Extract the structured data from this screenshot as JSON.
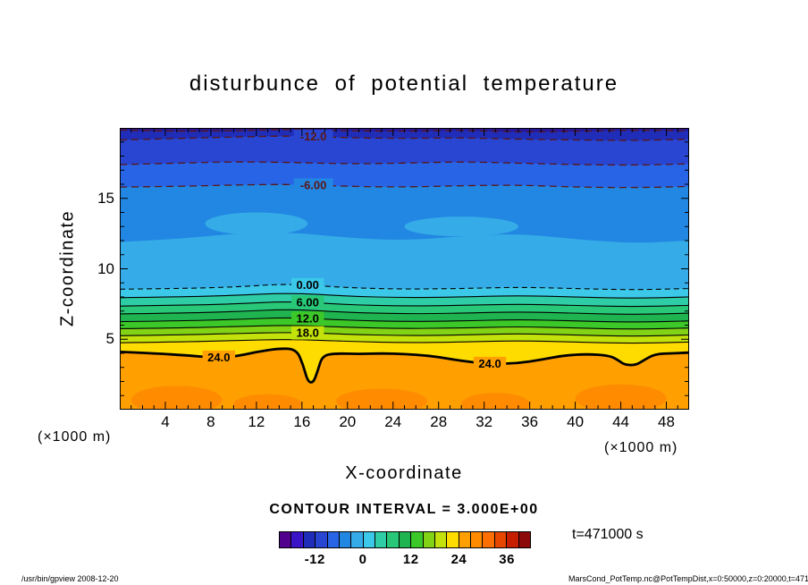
{
  "title": "disturbunce of potential temperature",
  "axes": {
    "x_label": "X-coordinate",
    "y_label": "Z-coordinate",
    "x_unit": "(×1000 m)",
    "y_unit": "(×1000 m)",
    "x_ticks": [
      4,
      8,
      12,
      16,
      20,
      24,
      28,
      32,
      36,
      40,
      44,
      48
    ],
    "y_ticks": [
      5,
      10,
      15
    ]
  },
  "contour_info": "CONTOUR INTERVAL = 3.000E+00",
  "time_label": "t=471000 s",
  "footer": {
    "left": "/usr/bin/gpview  2008-12-20",
    "right": "MarsCond_PotTemp.nc@PotTempDist,x=0:50000,z=0:20000,t=471000"
  },
  "colorbar": {
    "min": -21,
    "max": 42,
    "step": 3,
    "colors": [
      "#50008C",
      "#3C14C8",
      "#1F2DB8",
      "#2846D2",
      "#2864E6",
      "#2287E2",
      "#35ACE8",
      "#3CC8E8",
      "#2ECDA5",
      "#28C878",
      "#1FB450",
      "#3CC828",
      "#82D216",
      "#C3E10A",
      "#FFDC00",
      "#FFA000",
      "#FF8C00",
      "#FF6E00",
      "#E64600",
      "#C81E00",
      "#8C0A0A"
    ],
    "tick_labels": [
      -12,
      0,
      12,
      24,
      36
    ]
  },
  "chart_data": {
    "type": "contour",
    "title": "disturbunce of potential temperature",
    "xlabel": "X-coordinate",
    "ylabel": "Z-coordinate",
    "x_unit": "(×1000 m)",
    "y_unit": "(×1000 m)",
    "xlim": [
      0,
      50
    ],
    "ylim": [
      0,
      20
    ],
    "contour_interval": 3.0,
    "time_seconds": 471000,
    "grid": false,
    "base_color": "#281699",
    "boundaries": [
      {
        "level": -15,
        "style": "dashed-neg",
        "color_below": "#1F2DB8",
        "points": [
          [
            0,
            19.85
          ],
          [
            5,
            19.75
          ],
          [
            10,
            19.8
          ],
          [
            15,
            19.9
          ],
          [
            20,
            19.8
          ],
          [
            25,
            19.75
          ],
          [
            30,
            19.85
          ],
          [
            35,
            19.7
          ],
          [
            40,
            19.75
          ],
          [
            45,
            19.85
          ],
          [
            50,
            19.8
          ]
        ],
        "labels": []
      },
      {
        "level": -12,
        "style": "dashed-neg",
        "color_below": "#2846D2",
        "points": [
          [
            0,
            19.15
          ],
          [
            5,
            19.25
          ],
          [
            10,
            19.35
          ],
          [
            15,
            19.45
          ],
          [
            20,
            19.3
          ],
          [
            25,
            19.25
          ],
          [
            30,
            19.3
          ],
          [
            35,
            19.2
          ],
          [
            40,
            19.15
          ],
          [
            45,
            19.1
          ],
          [
            50,
            19.2
          ]
        ],
        "labels": [
          {
            "text": "-12.0",
            "x": 17
          }
        ]
      },
      {
        "level": -9,
        "style": "dashed-neg",
        "color_below": "#2864E6",
        "points": [
          [
            0,
            17.4
          ],
          [
            5,
            17.5
          ],
          [
            10,
            17.6
          ],
          [
            15,
            17.55
          ],
          [
            20,
            17.45
          ],
          [
            25,
            17.5
          ],
          [
            30,
            17.6
          ],
          [
            35,
            17.5
          ],
          [
            40,
            17.4
          ],
          [
            45,
            17.35
          ],
          [
            50,
            17.45
          ]
        ],
        "labels": []
      },
      {
        "level": -6,
        "style": "dashed-neg",
        "color_below": "#2287E2",
        "points": [
          [
            0,
            15.8
          ],
          [
            5,
            15.85
          ],
          [
            10,
            15.95
          ],
          [
            15,
            16.0
          ],
          [
            20,
            15.85
          ],
          [
            25,
            15.8
          ],
          [
            30,
            15.9
          ],
          [
            35,
            15.95
          ],
          [
            40,
            15.8
          ],
          [
            45,
            15.75
          ],
          [
            50,
            15.85
          ]
        ],
        "labels": [
          {
            "text": "-6.00",
            "x": 17
          }
        ]
      },
      {
        "level": -3,
        "style": "none",
        "color_below": "#35ACE8",
        "points": [
          [
            0,
            11.9
          ],
          [
            5,
            12.1
          ],
          [
            10,
            12.5
          ],
          [
            15,
            12.6
          ],
          [
            20,
            12.2
          ],
          [
            25,
            12.0
          ],
          [
            30,
            12.3
          ],
          [
            35,
            12.5
          ],
          [
            40,
            12.1
          ],
          [
            45,
            11.8
          ],
          [
            50,
            12.0
          ]
        ],
        "labels": []
      },
      {
        "level": 0,
        "style": "dashed",
        "color_below": "#3CC8E8",
        "points": [
          [
            0,
            8.55
          ],
          [
            5,
            8.6
          ],
          [
            10,
            8.7
          ],
          [
            15,
            8.95
          ],
          [
            20,
            8.65
          ],
          [
            25,
            8.55
          ],
          [
            30,
            8.6
          ],
          [
            35,
            8.7
          ],
          [
            40,
            8.6
          ],
          [
            45,
            8.5
          ],
          [
            50,
            8.6
          ]
        ],
        "labels": [
          {
            "text": "0.00",
            "x": 16.5
          }
        ]
      },
      {
        "level": 3,
        "style": "solid",
        "color_below": "#2ECDA5",
        "points": [
          [
            0,
            7.95
          ],
          [
            5,
            8.0
          ],
          [
            10,
            8.1
          ],
          [
            15,
            8.3
          ],
          [
            20,
            8.05
          ],
          [
            25,
            7.95
          ],
          [
            30,
            8.0
          ],
          [
            35,
            8.1
          ],
          [
            40,
            8.0
          ],
          [
            45,
            7.9
          ],
          [
            50,
            8.0
          ]
        ],
        "labels": []
      },
      {
        "level": 6,
        "style": "solid",
        "color_below": "#28C878",
        "points": [
          [
            0,
            7.35
          ],
          [
            5,
            7.4
          ],
          [
            10,
            7.5
          ],
          [
            15,
            7.7
          ],
          [
            20,
            7.45
          ],
          [
            25,
            7.35
          ],
          [
            30,
            7.4
          ],
          [
            35,
            7.5
          ],
          [
            40,
            7.4
          ],
          [
            45,
            7.3
          ],
          [
            50,
            7.4
          ]
        ],
        "labels": [
          {
            "text": "6.00",
            "x": 16.5
          }
        ]
      },
      {
        "level": 9,
        "style": "solid",
        "color_below": "#1FB450",
        "points": [
          [
            0,
            6.8
          ],
          [
            5,
            6.85
          ],
          [
            10,
            6.95
          ],
          [
            15,
            7.15
          ],
          [
            20,
            6.9
          ],
          [
            25,
            6.8
          ],
          [
            30,
            6.85
          ],
          [
            35,
            6.95
          ],
          [
            40,
            6.85
          ],
          [
            45,
            6.75
          ],
          [
            50,
            6.85
          ]
        ],
        "labels": []
      },
      {
        "level": 12,
        "style": "solid",
        "color_below": "#3CC828",
        "points": [
          [
            0,
            6.25
          ],
          [
            5,
            6.3
          ],
          [
            10,
            6.4
          ],
          [
            15,
            6.55
          ],
          [
            20,
            6.35
          ],
          [
            25,
            6.25
          ],
          [
            30,
            6.3
          ],
          [
            35,
            6.4
          ],
          [
            40,
            6.3
          ],
          [
            45,
            6.2
          ],
          [
            50,
            6.3
          ]
        ],
        "labels": [
          {
            "text": "12.0",
            "x": 16.5
          }
        ]
      },
      {
        "level": 15,
        "style": "solid",
        "color_below": "#82D216",
        "points": [
          [
            0,
            5.75
          ],
          [
            5,
            5.8
          ],
          [
            10,
            5.9
          ],
          [
            15,
            6.0
          ],
          [
            20,
            5.85
          ],
          [
            25,
            5.75
          ],
          [
            30,
            5.8
          ],
          [
            35,
            5.9
          ],
          [
            40,
            5.8
          ],
          [
            45,
            5.7
          ],
          [
            50,
            5.8
          ]
        ],
        "labels": []
      },
      {
        "level": 18,
        "style": "solid",
        "color_below": "#C3E10A",
        "points": [
          [
            0,
            5.25
          ],
          [
            5,
            5.3
          ],
          [
            10,
            5.4
          ],
          [
            15,
            5.5
          ],
          [
            20,
            5.35
          ],
          [
            25,
            5.25
          ],
          [
            30,
            5.3
          ],
          [
            35,
            5.4
          ],
          [
            40,
            5.3
          ],
          [
            45,
            5.2
          ],
          [
            50,
            5.3
          ]
        ],
        "labels": [
          {
            "text": "18.0",
            "x": 16.5
          }
        ]
      },
      {
        "level": 21,
        "style": "solid",
        "color_below": "#FFDC00",
        "points": [
          [
            0,
            4.75
          ],
          [
            5,
            4.8
          ],
          [
            10,
            4.9
          ],
          [
            15,
            5.0
          ],
          [
            20,
            4.85
          ],
          [
            25,
            4.75
          ],
          [
            30,
            4.8
          ],
          [
            35,
            4.9
          ],
          [
            40,
            4.8
          ],
          [
            45,
            4.7
          ],
          [
            50,
            4.8
          ]
        ],
        "labels": []
      },
      {
        "level": 24,
        "style": "thick",
        "color_below": "#FFA000",
        "points": [
          [
            0,
            4.1
          ],
          [
            3,
            4.0
          ],
          [
            6,
            3.85
          ],
          [
            8,
            3.7
          ],
          [
            10,
            3.75
          ],
          [
            12,
            4.1
          ],
          [
            14,
            4.35
          ],
          [
            15.5,
            4.3
          ],
          [
            16.1,
            3.2
          ],
          [
            16.5,
            2.0
          ],
          [
            17.0,
            1.9
          ],
          [
            17.4,
            2.8
          ],
          [
            17.8,
            3.85
          ],
          [
            19,
            4.0
          ],
          [
            21,
            3.95
          ],
          [
            23,
            4.0
          ],
          [
            25,
            3.95
          ],
          [
            27,
            3.85
          ],
          [
            29,
            3.6
          ],
          [
            31,
            3.35
          ],
          [
            33,
            3.25
          ],
          [
            35,
            3.3
          ],
          [
            37,
            3.55
          ],
          [
            39,
            3.85
          ],
          [
            41,
            3.95
          ],
          [
            43,
            3.85
          ],
          [
            43.8,
            3.5
          ],
          [
            44.3,
            3.2
          ],
          [
            45.3,
            3.15
          ],
          [
            46,
            3.5
          ],
          [
            47,
            3.95
          ],
          [
            48.5,
            4.0
          ],
          [
            50,
            4.05
          ]
        ],
        "labels": [
          {
            "text": "24.0",
            "x": 8.7
          },
          {
            "text": "24.0",
            "x": 32.5
          }
        ]
      }
    ],
    "patches": [
      {
        "cx": 5,
        "cz": 0.7,
        "rx": 4,
        "rz": 1.0,
        "color": "#FF8C00"
      },
      {
        "cx": 13,
        "cz": 0.4,
        "rx": 3,
        "rz": 0.7,
        "color": "#FF8C00"
      },
      {
        "cx": 23,
        "cz": 0.6,
        "rx": 4,
        "rz": 0.9,
        "color": "#FF8C00"
      },
      {
        "cx": 33,
        "cz": 0.4,
        "rx": 3,
        "rz": 0.8,
        "color": "#FF8C00"
      },
      {
        "cx": 44,
        "cz": 0.8,
        "rx": 4,
        "rz": 1.0,
        "color": "#FF8C00"
      },
      {
        "cx": 12,
        "cz": 13.2,
        "rx": 4.5,
        "rz": 0.8,
        "color": "#35ACE8"
      },
      {
        "cx": 30,
        "cz": 13.0,
        "rx": 5,
        "rz": 0.7,
        "color": "#35ACE8"
      }
    ]
  }
}
